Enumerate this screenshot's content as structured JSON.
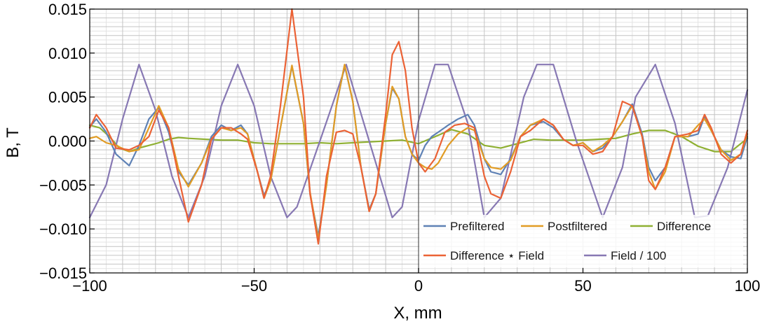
{
  "chart_data": {
    "type": "line",
    "title": "",
    "xlabel": "X, mm",
    "ylabel": "B, T",
    "xlim": [
      -100,
      100
    ],
    "ylim": [
      -0.015,
      0.015
    ],
    "grid": true,
    "x_ticks": [
      -100,
      -50,
      0,
      50,
      100
    ],
    "x_tick_labels": [
      "−100",
      "−50",
      "0",
      "50",
      "100"
    ],
    "y_ticks": [
      -0.015,
      -0.01,
      -0.005,
      0,
      0.005,
      0.01,
      0.015
    ],
    "y_tick_labels": [
      "−0.015",
      "−0.010",
      "−0.005",
      "0.000",
      "0.005",
      "0.010",
      "0.015"
    ],
    "legend_position": "bottom-right",
    "colors": {
      "prefiltered": "#5E81B5",
      "postfiltered": "#E19C24",
      "difference": "#8FB032",
      "difference_field": "#EB6235",
      "field": "#8778B3"
    },
    "series": [
      {
        "name": "Prefiltered",
        "color_key": "prefiltered",
        "x": [
          -100,
          -98,
          -95,
          -92,
          -88,
          -85,
          -82,
          -79,
          -76,
          -73,
          -70,
          -66,
          -63,
          -60,
          -57,
          -54,
          -52,
          -49,
          -47,
          -45,
          -42,
          -38.5,
          -35,
          -33,
          -30.5,
          -28,
          -25,
          -22.5,
          -20,
          -17.5,
          -15,
          -13,
          -10,
          -8,
          -6,
          -4,
          -2,
          0,
          2,
          4,
          6,
          9,
          12,
          15,
          17,
          20,
          22,
          25,
          28,
          31,
          34,
          38,
          41,
          44,
          47,
          50,
          53,
          56,
          59,
          62,
          65,
          68,
          70,
          72,
          75,
          78,
          82,
          85,
          87,
          89,
          92,
          95,
          98,
          100
        ],
        "y": [
          0.0016,
          0.0025,
          0.001,
          -0.0015,
          -0.0028,
          -0.0005,
          0.0025,
          0.0038,
          0.001,
          -0.0035,
          -0.005,
          -0.0025,
          0.0005,
          0.0018,
          0.0012,
          0.0018,
          0.0008,
          -0.0035,
          -0.0062,
          -0.0045,
          0.0015,
          0.0085,
          0.002,
          -0.006,
          -0.0108,
          -0.005,
          0.004,
          0.0086,
          0.0045,
          -0.003,
          -0.0078,
          -0.006,
          0.002,
          0.006,
          0.0048,
          0.0005,
          -0.0015,
          -0.0022,
          -0.0005,
          0.0005,
          0.001,
          0.0018,
          0.0025,
          0.003,
          0.0018,
          -0.002,
          -0.0035,
          -0.0038,
          -0.002,
          0.0005,
          0.0018,
          0.0022,
          0.0015,
          0.0002,
          -0.0005,
          -0.0002,
          -0.0012,
          -0.0008,
          0.0005,
          0.0022,
          0.0042,
          0.0008,
          -0.003,
          -0.0045,
          -0.003,
          0.0005,
          0.0005,
          0.0008,
          0.0028,
          0.0012,
          -0.001,
          -0.0018,
          -0.002,
          0.0005
        ]
      },
      {
        "name": "Postfiltered",
        "color_key": "postfiltered",
        "x": [
          -100,
          -98,
          -95,
          -92,
          -88,
          -85,
          -82,
          -79,
          -76,
          -73,
          -70,
          -66,
          -63,
          -60,
          -57,
          -54,
          -52,
          -49,
          -47,
          -45,
          -42,
          -38.5,
          -35,
          -33,
          -30.5,
          -28,
          -25,
          -22.5,
          -20,
          -17.5,
          -15,
          -13,
          -10,
          -8,
          -6,
          -4,
          -2,
          0,
          2,
          4,
          6,
          9,
          12,
          15,
          17,
          20,
          22,
          25,
          28,
          31,
          34,
          38,
          41,
          44,
          47,
          50,
          53,
          56,
          59,
          62,
          65,
          68,
          70,
          72,
          75,
          78,
          82,
          85,
          87,
          89,
          92,
          95,
          98,
          100
        ],
        "y": [
          0.0003,
          0.0005,
          -0.0002,
          -0.0005,
          -0.0012,
          -0.001,
          0.0015,
          0.004,
          0.0015,
          -0.0032,
          -0.0052,
          -0.0025,
          0.0002,
          0.0015,
          0.0012,
          0.0015,
          0.0008,
          -0.0035,
          -0.0065,
          -0.0045,
          0.0015,
          0.0086,
          0.002,
          -0.0058,
          -0.0112,
          -0.005,
          0.004,
          0.0087,
          0.0045,
          -0.003,
          -0.008,
          -0.006,
          0.002,
          0.0062,
          0.0048,
          0.0005,
          -0.0015,
          -0.0025,
          -0.003,
          -0.0032,
          -0.0025,
          -0.0005,
          0.0008,
          0.0015,
          0.0012,
          -0.002,
          -0.003,
          -0.0032,
          -0.0022,
          0.0005,
          0.0018,
          0.0025,
          0.0018,
          0.0002,
          -0.0005,
          -0.0002,
          -0.0012,
          -0.0005,
          0.0005,
          0.0022,
          0.004,
          0.0005,
          -0.0035,
          -0.0055,
          -0.0035,
          0.0005,
          0.0005,
          0.0018,
          0.0025,
          0.0012,
          -0.001,
          -0.0022,
          -0.0015,
          0.0008
        ]
      },
      {
        "name": "Difference",
        "color_key": "difference",
        "x": [
          -100,
          -97,
          -94,
          -91,
          -88,
          -85,
          -82,
          -79,
          -76,
          -73,
          -70,
          -65,
          -60,
          -55,
          -50,
          -45,
          -40,
          -35,
          -30,
          -25,
          -20,
          -15,
          -10,
          -5,
          0,
          5,
          10,
          15,
          20,
          25,
          30,
          35,
          40,
          45,
          50,
          55,
          60,
          65,
          70,
          75,
          80,
          85,
          90,
          95,
          100
        ],
        "y": [
          0.0018,
          0.0015,
          0.0005,
          -0.0008,
          -0.0012,
          -0.0008,
          -0.0005,
          -0.0002,
          0.0002,
          0.0004,
          0.0003,
          0.0002,
          0.0001,
          0.0001,
          -0.0002,
          -0.0003,
          -0.0003,
          -0.0003,
          -0.0002,
          -0.0003,
          -0.0002,
          -0.0001,
          0,
          0.0001,
          -0.0003,
          0.0005,
          0.0013,
          0.0008,
          -0.0005,
          -0.0008,
          -0.0003,
          0.0002,
          0.0001,
          0.0001,
          0.0001,
          0.0002,
          0.0003,
          0.0008,
          0.0012,
          0.0012,
          0.0005,
          -0.0006,
          -0.0012,
          -0.0012,
          0.0003
        ]
      },
      {
        "name": "Difference ⋆ Field",
        "color_key": "difference_field",
        "x": [
          -100,
          -98,
          -95,
          -92,
          -88,
          -85,
          -82,
          -79,
          -76,
          -73,
          -70,
          -66,
          -63,
          -60,
          -57,
          -54,
          -52,
          -49,
          -47,
          -45,
          -42,
          -38.5,
          -35,
          -33,
          -30.5,
          -28,
          -25,
          -22.5,
          -20,
          -17.5,
          -15,
          -13,
          -10,
          -8,
          -6,
          -4,
          -2,
          0,
          2,
          5,
          8,
          11,
          14,
          17,
          20,
          22,
          25,
          28,
          31,
          34,
          38,
          41,
          44,
          47,
          50,
          53,
          56,
          59,
          62,
          65,
          68,
          70,
          72,
          75,
          78,
          82,
          85,
          87,
          89,
          92,
          95,
          98,
          100
        ],
        "y": [
          0.0015,
          0.003,
          0.0015,
          -0.0008,
          -0.001,
          -0.0005,
          0.0005,
          0.0035,
          0.0015,
          -0.004,
          -0.0092,
          -0.005,
          0.0002,
          0.0015,
          0.0015,
          0.0008,
          0.0002,
          -0.0035,
          -0.0065,
          -0.004,
          0.004,
          0.015,
          0.005,
          -0.006,
          -0.0117,
          -0.004,
          0.001,
          0.0012,
          0.0008,
          -0.003,
          -0.008,
          -0.006,
          0.003,
          0.0098,
          0.0113,
          0.008,
          0.0015,
          -0.0025,
          -0.0035,
          -0.002,
          0.001,
          0.0018,
          0.002,
          0.0015,
          -0.004,
          -0.006,
          -0.0065,
          -0.0035,
          0.0005,
          0.0012,
          0.0025,
          0.0018,
          0.0002,
          -0.0005,
          -0.0005,
          -0.0015,
          -0.0012,
          0.0005,
          0.0045,
          0.004,
          0.0005,
          -0.0045,
          -0.0055,
          -0.003,
          0.0005,
          0.0008,
          0.0012,
          0.003,
          0.0015,
          -0.0015,
          -0.0025,
          -0.0015,
          0.0012
        ]
      },
      {
        "name": "Field / 100",
        "color_key": "field",
        "x": [
          -100,
          -95,
          -90,
          -85,
          -80,
          -75,
          -70,
          -65,
          -60,
          -55,
          -50,
          -45,
          -40,
          -37,
          -30,
          -22,
          -15,
          -8,
          -5,
          0,
          5,
          9,
          15,
          20,
          25,
          32,
          36,
          41,
          48,
          56,
          62,
          66,
          72,
          78,
          84,
          88,
          94,
          100
        ],
        "y": [
          -0.0087,
          -0.005,
          0.0025,
          0.0087,
          0.0035,
          -0.004,
          -0.0087,
          -0.004,
          0.004,
          0.0087,
          0.004,
          -0.004,
          -0.0087,
          -0.0075,
          0,
          0.0087,
          0,
          -0.0087,
          -0.0075,
          0.0023,
          0.0087,
          0.0087,
          0.002,
          -0.0087,
          -0.0065,
          0.005,
          0.0087,
          0.0087,
          0,
          -0.0087,
          -0.003,
          0.005,
          0.0087,
          0.002,
          -0.0087,
          -0.0085,
          -0.003,
          0.0058
        ]
      }
    ]
  }
}
